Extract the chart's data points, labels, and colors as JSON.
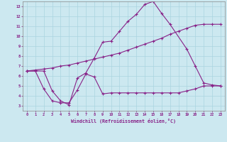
{
  "bg_color": "#cce8f0",
  "grid_color": "#aad4e0",
  "line_color": "#882288",
  "xlabel": "Windchill (Refroidissement éolien,°C)",
  "xlim_min": -0.5,
  "xlim_max": 23.5,
  "ylim_min": 2.5,
  "ylim_max": 13.5,
  "xticks": [
    0,
    1,
    2,
    3,
    4,
    5,
    6,
    7,
    8,
    9,
    10,
    11,
    12,
    13,
    14,
    15,
    16,
    17,
    18,
    19,
    20,
    21,
    22,
    23
  ],
  "yticks": [
    3,
    4,
    5,
    6,
    7,
    8,
    9,
    10,
    11,
    12,
    13
  ],
  "line1_x": [
    0,
    1,
    2,
    3,
    4,
    5,
    6,
    7,
    8,
    9,
    10,
    11,
    12,
    13,
    14,
    15,
    16,
    17,
    18,
    19,
    20,
    21,
    22,
    23
  ],
  "line1_y": [
    6.5,
    6.6,
    6.7,
    6.8,
    7.0,
    7.1,
    7.3,
    7.5,
    7.7,
    7.9,
    8.1,
    8.3,
    8.6,
    8.9,
    9.2,
    9.5,
    9.8,
    10.2,
    10.5,
    10.8,
    11.1,
    11.2,
    11.2,
    11.2
  ],
  "line2_x": [
    0,
    2,
    3,
    4,
    5,
    6,
    7,
    8,
    9,
    10,
    11,
    12,
    13,
    14,
    15,
    16,
    17,
    19,
    20,
    21,
    22,
    23
  ],
  "line2_y": [
    6.5,
    6.5,
    4.5,
    3.5,
    3.1,
    5.8,
    6.3,
    7.8,
    9.4,
    9.5,
    10.5,
    11.5,
    12.2,
    13.2,
    13.5,
    12.3,
    11.2,
    8.7,
    7.0,
    5.3,
    5.1,
    5.0
  ],
  "line3_x": [
    0,
    1,
    2,
    3,
    4,
    5,
    6,
    7,
    8,
    9,
    10,
    11,
    12,
    13,
    14,
    15,
    16,
    17,
    18,
    19,
    20,
    21,
    22,
    23
  ],
  "line3_y": [
    6.5,
    6.5,
    4.7,
    3.5,
    3.3,
    3.3,
    4.6,
    6.2,
    5.9,
    4.2,
    4.3,
    4.3,
    4.3,
    4.3,
    4.3,
    4.3,
    4.3,
    4.3,
    4.3,
    4.5,
    4.7,
    5.0,
    5.0,
    5.0
  ]
}
